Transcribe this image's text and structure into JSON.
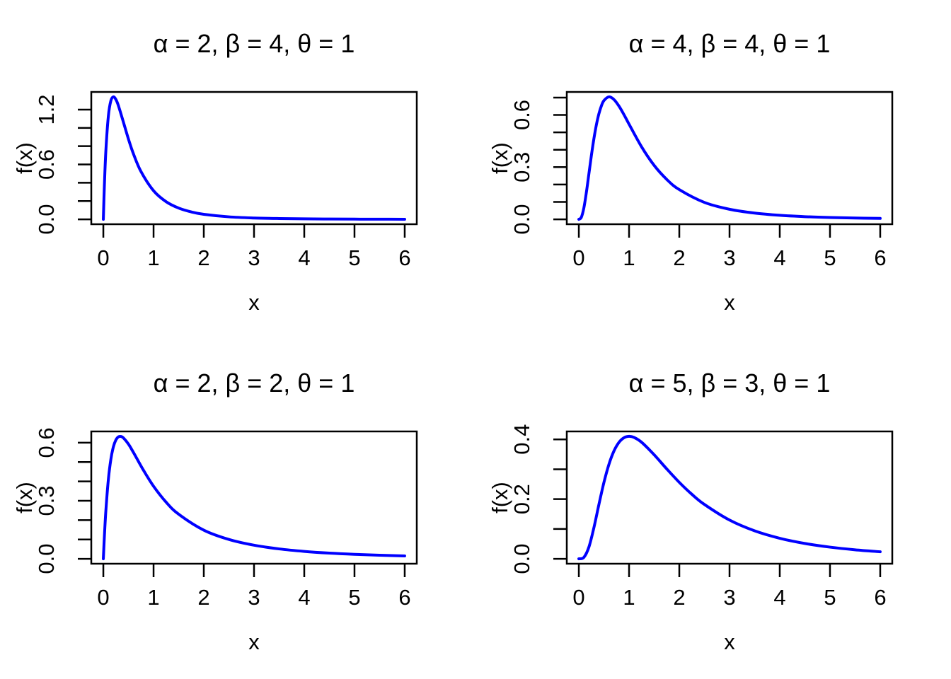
{
  "figure": {
    "background": "#ffffff",
    "axis_color": "#000000",
    "curve_color": "#0000ff",
    "layout_hint": "2x2 grid of R-style density plots, no gridlines, no legend"
  },
  "chart_data": [
    {
      "type": "line",
      "title": "α = 2, β = 4, θ = 1",
      "params": {
        "alpha": 2,
        "beta": 4,
        "theta": 1
      },
      "xlabel": "x",
      "ylabel": "f(x)",
      "xlim": [
        -0.24,
        6.24
      ],
      "ylim": [
        -0.0536,
        1.3932
      ],
      "xticks": [
        0,
        1,
        2,
        3,
        4,
        5,
        6
      ],
      "xtick_labels": [
        "0",
        "1",
        "2",
        "3",
        "4",
        "5",
        "6"
      ],
      "yticks": [
        0,
        0.2,
        0.4,
        0.6,
        0.8,
        1.0,
        1.2
      ],
      "ytick_labels": [
        "0.0",
        "",
        "",
        "0.6",
        "",
        "",
        "1.2"
      ],
      "line_color": "#0000ff",
      "peak": {
        "x": 0.2,
        "y": 1.3396
      },
      "points": [
        [
          0,
          0
        ],
        [
          0.02,
          0.3552
        ],
        [
          0.05,
          0.7462
        ],
        [
          0.1,
          1.129
        ],
        [
          0.15,
          1.297
        ],
        [
          0.2,
          1.3396
        ],
        [
          0.25,
          1.3107
        ],
        [
          0.3,
          1.2431
        ],
        [
          0.4,
          1.0625
        ],
        [
          0.5,
          0.8779
        ],
        [
          0.6,
          0.7153
        ],
        [
          0.75,
          0.5222
        ],
        [
          1,
          0.3125
        ],
        [
          1.25,
          0.1927
        ],
        [
          1.5,
          0.1229
        ],
        [
          1.75,
          0.0809
        ],
        [
          2,
          0.0549
        ],
        [
          2.5,
          0.0272
        ],
        [
          3,
          0.0146
        ],
        [
          3.5,
          0.0084
        ],
        [
          4,
          0.0051
        ],
        [
          4.5,
          0.0033
        ],
        [
          5,
          0.0021
        ],
        [
          5.5,
          0.0015
        ],
        [
          6,
          0.001
        ]
      ]
    },
    {
      "type": "line",
      "title": "α = 4, β = 4, θ = 1",
      "params": {
        "alpha": 4,
        "beta": 4,
        "theta": 1
      },
      "xlabel": "x",
      "ylabel": "f(x)",
      "xlim": [
        -0.24,
        6.24
      ],
      "ylim": [
        -0.0282,
        0.7323
      ],
      "xticks": [
        0,
        1,
        2,
        3,
        4,
        5,
        6
      ],
      "xtick_labels": [
        "0",
        "1",
        "2",
        "3",
        "4",
        "5",
        "6"
      ],
      "yticks": [
        0,
        0.1,
        0.2,
        0.3,
        0.4,
        0.5,
        0.6,
        0.7
      ],
      "ytick_labels": [
        "0.0",
        "",
        "",
        "0.3",
        "",
        "",
        "0.6",
        ""
      ],
      "line_color": "#0000ff",
      "peak": {
        "x": 0.6,
        "y": 0.7041
      },
      "points": [
        [
          0,
          0
        ],
        [
          0.05,
          0.0118
        ],
        [
          0.1,
          0.0653
        ],
        [
          0.15,
          0.1545
        ],
        [
          0.2,
          0.2605
        ],
        [
          0.25,
          0.367
        ],
        [
          0.3,
          0.4634
        ],
        [
          0.35,
          0.5441
        ],
        [
          0.4,
          0.6071
        ],
        [
          0.45,
          0.6529
        ],
        [
          0.5,
          0.6828
        ],
        [
          0.6,
          0.7041
        ],
        [
          0.7,
          0.6884
        ],
        [
          0.8,
          0.6504
        ],
        [
          0.9,
          0.6009
        ],
        [
          1,
          0.5469
        ],
        [
          1.25,
          0.4163
        ],
        [
          1.5,
          0.3097
        ],
        [
          1.75,
          0.2294
        ],
        [
          2,
          0.1707
        ],
        [
          2.5,
          0.0971
        ],
        [
          3,
          0.0577
        ],
        [
          3.5,
          0.0357
        ],
        [
          4,
          0.0229
        ],
        [
          4.5,
          0.0152
        ],
        [
          5,
          0.0104
        ],
        [
          5.5,
          0.0073
        ],
        [
          6,
          0.0052
        ]
      ]
    },
    {
      "type": "line",
      "title": "α = 2, β = 2, θ = 1",
      "params": {
        "alpha": 2,
        "beta": 2,
        "theta": 1
      },
      "xlabel": "x",
      "ylabel": "f(x)",
      "xlim": [
        -0.24,
        6.24
      ],
      "ylim": [
        -0.0253,
        0.6581
      ],
      "xticks": [
        0,
        1,
        2,
        3,
        4,
        5,
        6
      ],
      "xtick_labels": [
        "0",
        "1",
        "2",
        "3",
        "4",
        "5",
        "6"
      ],
      "yticks": [
        0,
        0.1,
        0.2,
        0.3,
        0.4,
        0.5,
        0.6
      ],
      "ytick_labels": [
        "0.0",
        "",
        "",
        "0.3",
        "",
        "",
        "0.6"
      ],
      "line_color": "#0000ff",
      "peak": {
        "x": 0.333,
        "y": 0.6328
      },
      "points": [
        [
          0,
          0
        ],
        [
          0.02,
          0.1109
        ],
        [
          0.05,
          0.2468
        ],
        [
          0.1,
          0.4098
        ],
        [
          0.15,
          0.5146
        ],
        [
          0.2,
          0.5787
        ],
        [
          0.25,
          0.6144
        ],
        [
          0.3,
          0.6302
        ],
        [
          0.35,
          0.6322
        ],
        [
          0.4,
          0.6247
        ],
        [
          0.5,
          0.5926
        ],
        [
          0.6,
          0.5493
        ],
        [
          0.7,
          0.5028
        ],
        [
          0.8,
          0.4572
        ],
        [
          1,
          0.375
        ],
        [
          1.25,
          0.2926
        ],
        [
          1.5,
          0.2304
        ],
        [
          2,
          0.1481
        ],
        [
          2.5,
          0.1
        ],
        [
          3,
          0.0703
        ],
        [
          3.5,
          0.0512
        ],
        [
          4,
          0.0384
        ],
        [
          4.5,
          0.0295
        ],
        [
          5,
          0.0231
        ],
        [
          5.5,
          0.0185
        ],
        [
          6,
          0.015
        ]
      ]
    },
    {
      "type": "line",
      "title": "α = 5, β = 3, θ = 1",
      "params": {
        "alpha": 5,
        "beta": 3,
        "theta": 1
      },
      "xlabel": "x",
      "ylabel": "f(x)",
      "xlim": [
        -0.24,
        6.24
      ],
      "ylim": [
        -0.0164,
        0.4266
      ],
      "xticks": [
        0,
        1,
        2,
        3,
        4,
        5,
        6
      ],
      "xtick_labels": [
        "0",
        "1",
        "2",
        "3",
        "4",
        "5",
        "6"
      ],
      "yticks": [
        0,
        0.1,
        0.2,
        0.3,
        0.4
      ],
      "ytick_labels": [
        "0.0",
        "",
        "0.2",
        "",
        "0.4"
      ],
      "line_color": "#0000ff",
      "peak": {
        "x": 1.0,
        "y": 0.4102
      },
      "points": [
        [
          0,
          0
        ],
        [
          0.1,
          0.0049
        ],
        [
          0.2,
          0.0391
        ],
        [
          0.3,
          0.1043
        ],
        [
          0.4,
          0.1822
        ],
        [
          0.5,
          0.2561
        ],
        [
          0.6,
          0.3168
        ],
        [
          0.7,
          0.3614
        ],
        [
          0.8,
          0.3903
        ],
        [
          0.9,
          0.4056
        ],
        [
          1,
          0.4102
        ],
        [
          1.1,
          0.4065
        ],
        [
          1.25,
          0.3903
        ],
        [
          1.5,
          0.3484
        ],
        [
          1.75,
          0.3011
        ],
        [
          2,
          0.2561
        ],
        [
          2.25,
          0.2162
        ],
        [
          2.5,
          0.1821
        ],
        [
          3,
          0.1298
        ],
        [
          3.5,
          0.0937
        ],
        [
          4,
          0.0688
        ],
        [
          4.5,
          0.0514
        ],
        [
          5,
          0.0391
        ],
        [
          5.5,
          0.0302
        ],
        [
          6,
          0.0236
        ]
      ]
    }
  ]
}
